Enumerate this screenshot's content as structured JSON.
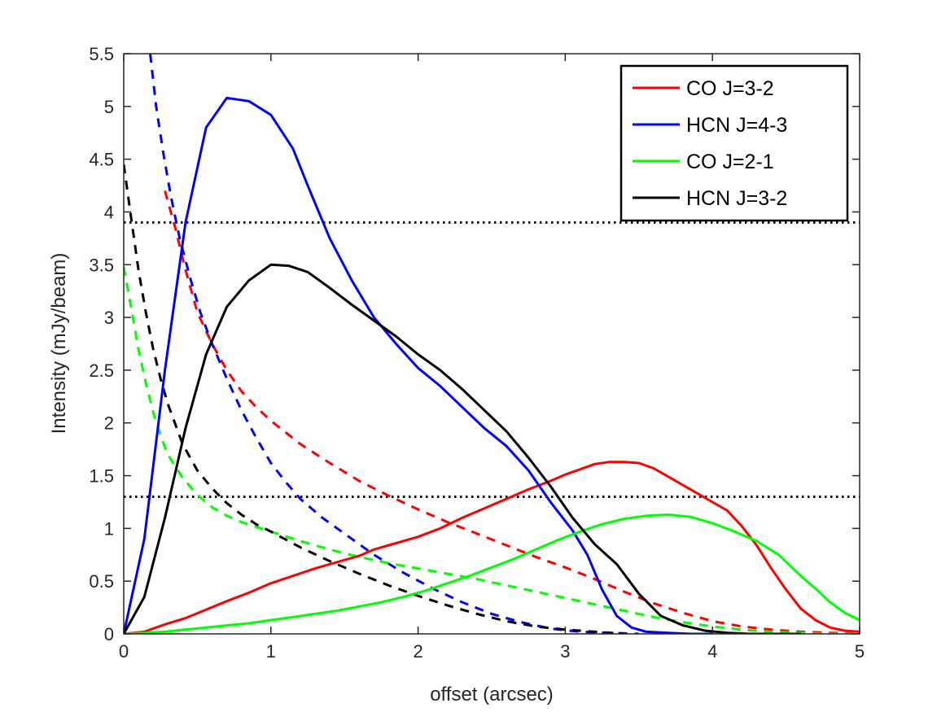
{
  "chart_data": {
    "type": "line",
    "xlabel": "offset (arcsec)",
    "ylabel": "Intensity (mJy/beam)",
    "xlim": [
      0,
      5
    ],
    "ylim": [
      0,
      5.5
    ],
    "xticks": [
      0,
      1,
      2,
      3,
      4,
      5
    ],
    "yticks": [
      0,
      0.5,
      1,
      1.5,
      2,
      2.5,
      3,
      3.5,
      4,
      4.5,
      5,
      5.5
    ],
    "xtick_labels": [
      "0",
      "1",
      "2",
      "3",
      "4",
      "5"
    ],
    "ytick_labels": [
      "0",
      "0.5",
      "1",
      "1.5",
      "2",
      "2.5",
      "3",
      "3.5",
      "4",
      "4.5",
      "5",
      "5.5"
    ],
    "grid": false,
    "legend_position": "top-right",
    "legend": [
      "CO J=3-2",
      "HCN J=4-3",
      "CO J=2-1",
      "HCN J=3-2"
    ],
    "series": [
      {
        "name": "CO J=3-2",
        "color": "#ff0000",
        "style": "solid",
        "x": [
          0,
          0.14,
          0.28,
          0.42,
          0.56,
          0.7,
          0.85,
          1.0,
          1.15,
          1.3,
          1.45,
          1.6,
          1.7,
          1.85,
          2.0,
          2.15,
          2.3,
          2.45,
          2.6,
          2.75,
          2.9,
          3.0,
          3.1,
          3.2,
          3.3,
          3.4,
          3.5,
          3.6,
          3.7,
          3.8,
          3.9,
          4.0,
          4.1,
          4.2,
          4.3,
          4.4,
          4.5,
          4.6,
          4.7,
          4.8,
          4.9,
          5.0
        ],
        "y": [
          0,
          0.02,
          0.09,
          0.15,
          0.23,
          0.31,
          0.39,
          0.48,
          0.55,
          0.62,
          0.68,
          0.74,
          0.8,
          0.86,
          0.92,
          1.0,
          1.1,
          1.19,
          1.28,
          1.37,
          1.45,
          1.51,
          1.56,
          1.61,
          1.63,
          1.63,
          1.62,
          1.57,
          1.49,
          1.41,
          1.33,
          1.25,
          1.17,
          1.02,
          0.84,
          0.62,
          0.42,
          0.24,
          0.13,
          0.06,
          0.03,
          0.02
        ]
      },
      {
        "name": "HCN J=4-3",
        "color": "#0000ff",
        "style": "solid",
        "x": [
          0,
          0.14,
          0.28,
          0.42,
          0.56,
          0.7,
          0.85,
          1.0,
          1.15,
          1.25,
          1.4,
          1.55,
          1.7,
          1.85,
          2.0,
          2.15,
          2.3,
          2.45,
          2.6,
          2.75,
          2.9,
          3.05,
          3.15,
          3.25,
          3.35,
          3.45,
          3.55,
          3.7,
          3.85,
          4.0
        ],
        "y": [
          0,
          0.9,
          2.5,
          3.9,
          4.8,
          5.08,
          5.05,
          4.92,
          4.6,
          4.25,
          3.75,
          3.35,
          3.0,
          2.75,
          2.52,
          2.35,
          2.15,
          1.95,
          1.78,
          1.55,
          1.25,
          0.98,
          0.75,
          0.42,
          0.17,
          0.06,
          0.02,
          0.01,
          0.0,
          0.0
        ]
      },
      {
        "name": "CO J=2-1",
        "color": "#00ff00",
        "style": "solid",
        "x": [
          0,
          0.14,
          0.28,
          0.42,
          0.56,
          0.7,
          0.85,
          1.0,
          1.15,
          1.3,
          1.45,
          1.6,
          1.75,
          1.9,
          2.05,
          2.2,
          2.35,
          2.5,
          2.65,
          2.8,
          2.95,
          3.1,
          3.25,
          3.4,
          3.55,
          3.7,
          3.85,
          4.0,
          4.15,
          4.3,
          4.45,
          4.6,
          4.7,
          4.8,
          4.9,
          5.0
        ],
        "y": [
          0,
          0.01,
          0.02,
          0.04,
          0.06,
          0.08,
          0.1,
          0.13,
          0.16,
          0.19,
          0.22,
          0.26,
          0.3,
          0.35,
          0.41,
          0.48,
          0.55,
          0.63,
          0.71,
          0.8,
          0.89,
          0.97,
          1.04,
          1.09,
          1.12,
          1.13,
          1.11,
          1.05,
          0.97,
          0.88,
          0.75,
          0.55,
          0.43,
          0.3,
          0.2,
          0.13
        ]
      },
      {
        "name": "HCN J=3-2",
        "color": "#000000",
        "style": "solid",
        "x": [
          0,
          0.14,
          0.28,
          0.42,
          0.56,
          0.7,
          0.85,
          1.0,
          1.12,
          1.25,
          1.4,
          1.55,
          1.7,
          1.85,
          2.0,
          2.15,
          2.3,
          2.45,
          2.6,
          2.75,
          2.9,
          3.05,
          3.2,
          3.35,
          3.5,
          3.65,
          3.8,
          3.95,
          4.1,
          4.25,
          4.4,
          4.6
        ],
        "y": [
          0,
          0.35,
          1.1,
          1.95,
          2.65,
          3.1,
          3.35,
          3.5,
          3.49,
          3.43,
          3.28,
          3.12,
          2.97,
          2.82,
          2.65,
          2.5,
          2.32,
          2.12,
          1.92,
          1.67,
          1.4,
          1.1,
          0.85,
          0.66,
          0.38,
          0.17,
          0.08,
          0.03,
          0.01,
          0.0,
          0.0,
          0.0
        ]
      },
      {
        "name": "CO J=3-2 dashed",
        "color": "#ff0000",
        "style": "dashed",
        "x": [
          0.28,
          0.35,
          0.42,
          0.5,
          0.6,
          0.7,
          0.8,
          0.9,
          1.0,
          1.2,
          1.4,
          1.6,
          1.8,
          2.0,
          2.2,
          2.4,
          2.6,
          2.8,
          3.0,
          3.2,
          3.4,
          3.6,
          3.8,
          4.0,
          4.2,
          4.4,
          4.6,
          4.8,
          5.0
        ],
        "y": [
          4.2,
          3.85,
          3.45,
          3.05,
          2.75,
          2.5,
          2.3,
          2.15,
          2.02,
          1.8,
          1.62,
          1.45,
          1.31,
          1.18,
          1.06,
          0.95,
          0.84,
          0.73,
          0.63,
          0.52,
          0.4,
          0.29,
          0.2,
          0.12,
          0.07,
          0.04,
          0.02,
          0.01,
          0.0
        ]
      },
      {
        "name": "HCN J=4-3 dashed",
        "color": "#0000ff",
        "style": "dashed",
        "x": [
          0.18,
          0.22,
          0.27,
          0.32,
          0.38,
          0.45,
          0.52,
          0.6,
          0.7,
          0.8,
          0.9,
          1.0,
          1.1,
          1.2,
          1.35,
          1.5,
          1.7,
          1.9,
          2.1,
          2.3,
          2.5,
          2.7,
          2.9,
          3.1,
          3.3,
          3.5
        ],
        "y": [
          5.5,
          5.0,
          4.55,
          4.15,
          3.75,
          3.38,
          3.05,
          2.75,
          2.42,
          2.12,
          1.86,
          1.62,
          1.44,
          1.28,
          1.1,
          0.95,
          0.75,
          0.58,
          0.43,
          0.3,
          0.19,
          0.11,
          0.05,
          0.02,
          0.01,
          0.0
        ]
      },
      {
        "name": "CO J=2-1 dashed",
        "color": "#00ff00",
        "style": "dashed",
        "x": [
          0,
          0.05,
          0.1,
          0.15,
          0.2,
          0.25,
          0.3,
          0.4,
          0.5,
          0.6,
          0.7,
          0.8,
          1.0,
          1.2,
          1.4,
          1.6,
          1.8,
          2.0,
          2.2,
          2.4,
          2.6,
          2.8,
          3.0,
          3.2,
          3.4,
          3.6,
          3.8,
          4.0,
          4.2,
          4.4,
          4.6,
          4.8,
          5.0
        ],
        "y": [
          3.48,
          3.1,
          2.7,
          2.38,
          2.1,
          1.88,
          1.7,
          1.48,
          1.32,
          1.2,
          1.12,
          1.06,
          0.97,
          0.88,
          0.8,
          0.73,
          0.67,
          0.62,
          0.57,
          0.52,
          0.46,
          0.4,
          0.34,
          0.28,
          0.22,
          0.16,
          0.11,
          0.07,
          0.04,
          0.02,
          0.01,
          0.0,
          0.0
        ]
      },
      {
        "name": "HCN J=3-2 dashed",
        "color": "#000000",
        "style": "dashed",
        "x": [
          0,
          0.05,
          0.1,
          0.15,
          0.2,
          0.25,
          0.3,
          0.4,
          0.5,
          0.6,
          0.7,
          0.8,
          0.9,
          1.0,
          1.2,
          1.4,
          1.6,
          1.8,
          2.0,
          2.2,
          2.4,
          2.6,
          2.8,
          3.0,
          3.2,
          3.4
        ],
        "y": [
          4.45,
          3.95,
          3.45,
          3.05,
          2.7,
          2.42,
          2.18,
          1.8,
          1.55,
          1.38,
          1.24,
          1.13,
          1.04,
          0.97,
          0.82,
          0.69,
          0.57,
          0.46,
          0.36,
          0.27,
          0.19,
          0.12,
          0.07,
          0.04,
          0.02,
          0.0
        ]
      }
    ],
    "reference_lines": [
      {
        "y": 3.9,
        "style": "dotted",
        "color": "#000000"
      },
      {
        "y": 1.3,
        "style": "dotted",
        "color": "#000000"
      }
    ]
  }
}
